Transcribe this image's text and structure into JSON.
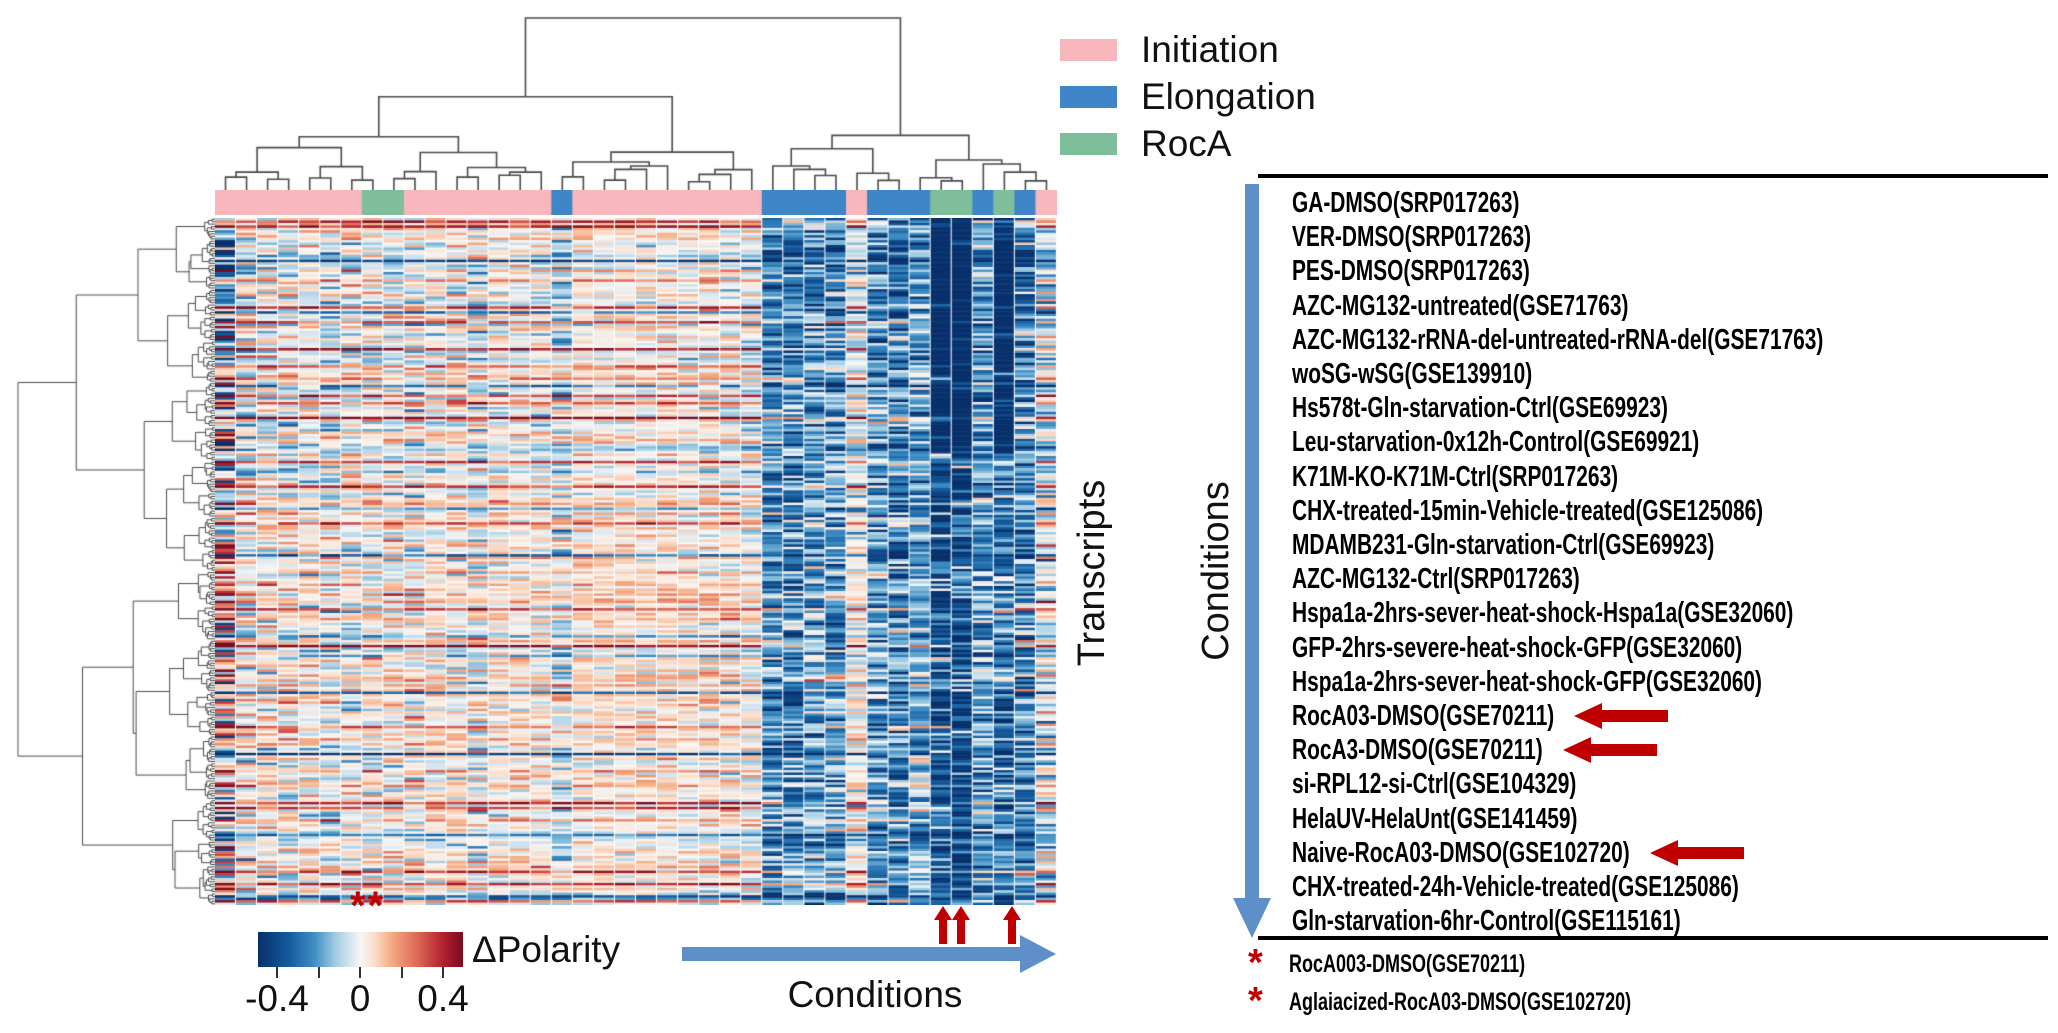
{
  "legend": {
    "items": [
      {
        "label": "Initiation",
        "color": "#F8B7BD"
      },
      {
        "label": "Elongation",
        "color": "#3E86C7"
      },
      {
        "label": "RocA",
        "color": "#7FBE9B"
      }
    ]
  },
  "labels": {
    "transcripts_axis": "Transcripts",
    "conditions_axis_vertical": "Conditions",
    "conditions_axis_bottom": "Conditions"
  },
  "colorbar": {
    "title": "ΔPolarity",
    "significance_marks": "**",
    "tick_labels": [
      "-0.4",
      "0",
      "0.4"
    ],
    "min": -0.4,
    "max": 0.4
  },
  "conditions_list": {
    "items": [
      {
        "label": "GA-DMSO(SRP017263)",
        "arrow": false
      },
      {
        "label": "VER-DMSO(SRP017263)",
        "arrow": false
      },
      {
        "label": "PES-DMSO(SRP017263)",
        "arrow": false
      },
      {
        "label": "AZC-MG132-untreated(GSE71763)",
        "arrow": false
      },
      {
        "label": "AZC-MG132-rRNA-del-untreated-rRNA-del(GSE71763)",
        "arrow": false
      },
      {
        "label": "woSG-wSG(GSE139910)",
        "arrow": false
      },
      {
        "label": "Hs578t-Gln-starvation-Ctrl(GSE69923)",
        "arrow": false
      },
      {
        "label": "Leu-starvation-0x12h-Control(GSE69921)",
        "arrow": false
      },
      {
        "label": "K71M-KO-K71M-Ctrl(SRP017263)",
        "arrow": false
      },
      {
        "label": "CHX-treated-15min-Vehicle-treated(GSE125086)",
        "arrow": false
      },
      {
        "label": "MDAMB231-Gln-starvation-Ctrl(GSE69923)",
        "arrow": false
      },
      {
        "label": "AZC-MG132-Ctrl(SRP017263)",
        "arrow": false
      },
      {
        "label": "Hspa1a-2hrs-sever-heat-shock-Hspa1a(GSE32060)",
        "arrow": false
      },
      {
        "label": "GFP-2hrs-severe-heat-shock-GFP(GSE32060)",
        "arrow": false
      },
      {
        "label": "Hspa1a-2hrs-sever-heat-shock-GFP(GSE32060)",
        "arrow": false
      },
      {
        "label": "RocA03-DMSO(GSE70211)",
        "arrow": true
      },
      {
        "label": "RocA3-DMSO(GSE70211)",
        "arrow": true
      },
      {
        "label": "si-RPL12-si-Ctrl(GSE104329)",
        "arrow": false
      },
      {
        "label": "HelaUV-HelaUnt(GSE141459)",
        "arrow": false
      },
      {
        "label": "Naive-RocA03-DMSO(GSE102720)",
        "arrow": true
      },
      {
        "label": "CHX-treated-24h-Vehicle-treated(GSE125086)",
        "arrow": false
      },
      {
        "label": "Gln-starvation-6hr-Control(GSE115161)",
        "arrow": false
      }
    ],
    "starred": [
      {
        "marker": "*",
        "label": "RocA003-DMSO(GSE70211)"
      },
      {
        "marker": "*",
        "label": "Aglaiacized-RocA03-DMSO(GSE102720)"
      }
    ]
  },
  "chart_data": {
    "type": "heatmap",
    "title": "",
    "value_label": "ΔPolarity",
    "value_range": [
      -0.4,
      0.4
    ],
    "rows_label": "Transcripts",
    "cols_label": "Conditions",
    "n_rows_approx": 280,
    "n_cols": 40,
    "row_dendrogram": true,
    "col_dendrogram": true,
    "column_groups": [
      "Initiation",
      "Initiation",
      "Initiation",
      "Initiation",
      "Initiation",
      "Initiation",
      "Initiation",
      "RocA",
      "RocA",
      "Initiation",
      "Initiation",
      "Initiation",
      "Initiation",
      "Initiation",
      "Initiation",
      "Initiation",
      "Elongation",
      "Initiation",
      "Initiation",
      "Initiation",
      "Initiation",
      "Initiation",
      "Initiation",
      "Initiation",
      "Initiation",
      "Initiation",
      "Elongation",
      "Elongation",
      "Elongation",
      "Elongation",
      "Initiation",
      "Elongation",
      "Elongation",
      "Elongation",
      "RocA",
      "RocA",
      "Elongation",
      "RocA",
      "Elongation",
      "Initiation"
    ],
    "column_mean_dpolarity": [
      -0.02,
      -0.01,
      0,
      -0.01,
      0,
      -0.02,
      -0.01,
      -0.01,
      0,
      -0.01,
      0,
      0.01,
      -0.02,
      0,
      0.01,
      0,
      -0.05,
      0.02,
      0.02,
      0.02,
      0.01,
      0.02,
      0,
      0.01,
      0,
      -0.01,
      -0.1,
      -0.12,
      -0.09,
      -0.11,
      -0.03,
      -0.1,
      -0.12,
      -0.08,
      -0.22,
      -0.24,
      -0.1,
      -0.16,
      -0.12,
      -0.06
    ],
    "column_noise_sd": [
      0.26,
      0.1,
      0.08,
      0.09,
      0.07,
      0.1,
      0.08,
      0.07,
      0.08,
      0.09,
      0.06,
      0.07,
      0.1,
      0.06,
      0.05,
      0.06,
      0.09,
      0.05,
      0.04,
      0.04,
      0.05,
      0.05,
      0.05,
      0.06,
      0.07,
      0.07,
      0.12,
      0.13,
      0.12,
      0.12,
      0.08,
      0.13,
      0.12,
      0.11,
      0.14,
      0.14,
      0.12,
      0.13,
      0.12,
      0.1
    ],
    "strong_negative_columns_0idx": [
      34,
      35,
      37
    ],
    "bottom_arrow_columns_0idx": [
      34,
      35,
      37
    ],
    "colormap": "RdBu (blue = negative ΔPolarity, red = positive)",
    "colormap_stops": [
      [
        -0.4,
        "#08306b"
      ],
      [
        -0.28,
        "#135a9c"
      ],
      [
        -0.18,
        "#3f8ec4"
      ],
      [
        -0.1,
        "#9ecae1"
      ],
      [
        -0.04,
        "#d6e5f0"
      ],
      [
        0.0,
        "#f7f6f4"
      ],
      [
        0.05,
        "#fbe0cf"
      ],
      [
        0.12,
        "#f5ab84"
      ],
      [
        0.22,
        "#dd6a57"
      ],
      [
        0.32,
        "#b32230"
      ],
      [
        0.4,
        "#7a0c20"
      ]
    ]
  },
  "colors": {
    "initiation": "#F8B7BD",
    "elongation": "#3E86C7",
    "roca": "#7FBE9B",
    "flow_arrow_blue": "#5E8FC9",
    "highlight_arrow_red": "#C00000",
    "dendrogram_line": "#4a4a4a",
    "list_rule_black": "#000000"
  }
}
